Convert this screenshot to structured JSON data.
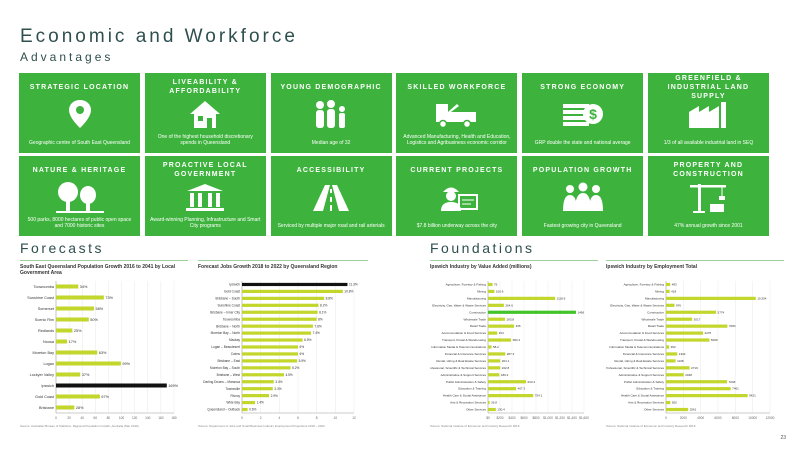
{
  "header": {
    "title": "Economic and Workforce",
    "subtitle": "Advantages"
  },
  "tiles": [
    {
      "title": "STRATEGIC LOCATION",
      "desc": "Geographic centre of South East Queensland",
      "icon": "location-pin-icon"
    },
    {
      "title": "LIVEABILITY & AFFORDABILITY",
      "desc": "One of the highest household discretionary spends in Queensland",
      "icon": "house-icon"
    },
    {
      "title": "YOUNG DEMOGRAPHIC",
      "desc": "Median age of 32",
      "icon": "family-icon"
    },
    {
      "title": "SKILLED WORKFORCE",
      "desc": "Advanced Manufacturing, Health and Education, Logistics and Agribusiness economic corridor",
      "icon": "truck-icon"
    },
    {
      "title": "STRONG ECONOMY",
      "desc": "GRP double the state and national average",
      "icon": "money-icon"
    },
    {
      "title": "GREENFIELD & INDUSTRIAL LAND SUPPLY",
      "desc": "1/3 of all available industrial land in SEQ",
      "icon": "factory-icon"
    },
    {
      "title": "NATURE & HERITAGE",
      "desc": "500 parks, 8000 hectares of public open space and 7000 historic sites",
      "icon": "trees-icon"
    },
    {
      "title": "PROACTIVE LOCAL GOVERNMENT",
      "desc": "Award-winning Planning, Infrastructure and Smart City programs",
      "icon": "government-icon"
    },
    {
      "title": "ACCESSIBILITY",
      "desc": "Serviced by multiple major road and rail arterials",
      "icon": "road-icon"
    },
    {
      "title": "CURRENT PROJECTS",
      "desc": "$7.8 billion underway across the city",
      "icon": "engineer-icon"
    },
    {
      "title": "POPULATION GROWTH",
      "desc": "Fastest growing city in Queensland",
      "icon": "people-icon"
    },
    {
      "title": "PROPERTY AND CONSTRUCTION",
      "desc": "47% annual growth since 2001",
      "icon": "crane-icon"
    }
  ],
  "sections": {
    "forecasts": "Forecasts",
    "foundations": "Foundations"
  },
  "page_number": "23",
  "colors": {
    "tile_green": "#3db33d",
    "bar_green": "#c2d62b",
    "bar_bright": "#42c42a",
    "bar_black": "#111111"
  },
  "chart_data": [
    {
      "type": "bar",
      "title": "South East Queensland Population Growth 2016 to 2041 by Local Government Area",
      "orientation": "horizontal",
      "categories": [
        "Toowoomba",
        "Sunshine Coast",
        "Somerset",
        "Scenic Rim",
        "Redlands",
        "Noosa",
        "Moreton Bay",
        "Logan",
        "Lockyer Valley",
        "Ipswich",
        "Gold Coast",
        "Brisbane"
      ],
      "values": [
        34,
        73,
        58,
        50,
        25,
        17,
        63,
        99,
        37,
        169,
        67,
        28
      ],
      "labels": [
        "34%",
        "73%",
        "58%",
        "50%",
        "25%",
        "17%",
        "63%",
        "99%",
        "37%",
        "169%",
        "67%",
        "28%"
      ],
      "highlight": "Ipswich",
      "xlim": [
        0,
        180
      ],
      "ticks": [
        "0",
        "20",
        "40",
        "60",
        "80",
        "100",
        "120",
        "140",
        "160",
        "180"
      ],
      "source": "Source: Australian Bureau of Statistics, Regional Population Growth, Australia (Mar 2019)"
    },
    {
      "type": "bar",
      "title": "Forecast Jobs Growth 2018 to 2022 by Queensland Region",
      "orientation": "horizontal",
      "categories": [
        "Ipswich",
        "Gold Coast",
        "Brisbane – South",
        "Sunshine Coast",
        "Brisbane – Inner City",
        "Toowoomba",
        "Brisbane – North",
        "Moreton Bay – North",
        "Mackay",
        "Logan – Beaudesert",
        "Cairns",
        "Brisbane – East",
        "Moreton Bay – South",
        "Brisbane – West",
        "Darling Downs – Maranoa",
        "Townsville",
        "Fitzroy",
        "Wide Bay",
        "Queensland – Outback"
      ],
      "values": [
        11.3,
        10.8,
        8.8,
        8.2,
        8.1,
        8.0,
        7.6,
        7.4,
        6.5,
        6.0,
        6.0,
        5.9,
        5.2,
        4.5,
        3.4,
        3.3,
        2.9,
        1.4,
        0.6
      ],
      "labels": [
        "11.3%",
        "10.8%",
        "8.8%",
        "8.2%",
        "8.1%",
        "8%",
        "7.6%",
        "7.4%",
        "6.5%",
        "6%",
        "6%",
        "5.9%",
        "5.2%",
        "4.5%",
        "3.4%",
        "3.3%",
        "2.9%",
        "1.4%",
        "0.6%"
      ],
      "highlight": "Ipswich",
      "xlim": [
        0,
        12
      ],
      "ticks": [
        "0",
        "2",
        "4",
        "6",
        "8",
        "10",
        "12"
      ],
      "source": "Source: Department of Jobs and Small Business Industry Employment Projections 2018 – 2022"
    },
    {
      "type": "bar",
      "title": "Ipswich Industry by Value Added (millions)",
      "orientation": "horizontal",
      "categories": [
        "Agriculture, Forestry & Fishing",
        "Mining",
        "Manufacturing",
        "Electricity, Gas, Water & Waste Services",
        "Construction",
        "Wholesale Trade",
        "Retail Trade",
        "Accommodation & Food Services",
        "Transport, Postal & Warehousing",
        "Information Media & Telecommunications",
        "Financial & Insurance Services",
        "Rental, Hiring & Real Estate Services",
        "Professional, Scientific & Technical Services",
        "Administrative & Support Services",
        "Public Administration & Safety",
        "Education & Training",
        "Health Care & Social Assistance",
        "Arts & Recreation Services",
        "Other Services"
      ],
      "values": [
        75,
        106.6,
        1118.9,
        264.6,
        1466,
        283.8,
        435,
        154,
        384.4,
        58.2,
        287.3,
        204.1,
        202.8,
        189.2,
        633.4,
        467.3,
        754.1,
        26.8,
        130.4
      ],
      "labels": [
        "75",
        "106.6",
        "1118.9",
        "264.6",
        "1466",
        "283.8",
        "435",
        "154",
        "384.4",
        "58.2",
        "287.3",
        "204.1",
        "202.8",
        "189.2",
        "633.4",
        "467.3",
        "754.1",
        "26.8",
        "130.4"
      ],
      "highlight": "Construction",
      "xlim": [
        0,
        1600
      ],
      "ticks": [
        "$0",
        "$200",
        "$400",
        "$600",
        "$800",
        "$1,000",
        "$1,200",
        "$1,400",
        "$1,600"
      ],
      "source": "Source: National Institute of Economic and Industry Research 2018"
    },
    {
      "type": "bar",
      "title": "Ipswich Industry by Employment Total",
      "orientation": "horizontal",
      "categories": [
        "Agriculture, Forestry & Fishing",
        "Mining",
        "Manufacturing",
        "Electricity, Gas, Water & Waste Services",
        "Construction",
        "Wholesale Trade",
        "Retail Trade",
        "Accommodation & Food Services",
        "Transport, Postal & Warehousing",
        "Information Media & Telecommunications",
        "Financial & Insurance Services",
        "Rental, Hiring & Real Estate Services",
        "Professional, Scientific & Technical Services",
        "Administrative & Support Services",
        "Public Administration & Safety",
        "Education & Training",
        "Health Care & Social Assistance",
        "Arts & Recreation Services",
        "Other Services"
      ],
      "values": [
        483,
        418,
        10354,
        976,
        5774,
        3017,
        7084,
        4276,
        5009,
        362,
        1302,
        1108,
        2719,
        2048,
        7048,
        7461,
        9421,
        500,
        2561
      ],
      "labels": [
        "483",
        "418",
        "10,354",
        "976",
        "5774",
        "3017",
        "7084",
        "4276",
        "5009",
        "362",
        "1302",
        "1108",
        "2719",
        "2048",
        "7048",
        "7461",
        "9421",
        "500",
        "2561"
      ],
      "highlight": "",
      "xlim": [
        0,
        12000
      ],
      "ticks": [
        "0",
        "2000",
        "4000",
        "6000",
        "8000",
        "10000",
        "12000"
      ],
      "source": "Source: National Institute of Economic and Industry Research 2018"
    }
  ]
}
